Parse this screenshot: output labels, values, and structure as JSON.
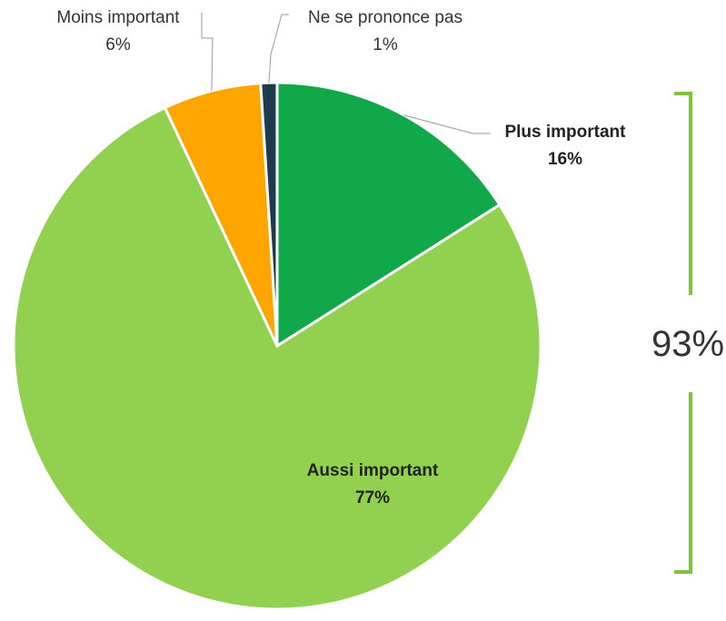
{
  "chart_data": {
    "type": "pie",
    "slices": [
      {
        "label": "Plus important",
        "value": 16,
        "value_label": "16%",
        "color": "#11A84A"
      },
      {
        "label": "Aussi important",
        "value": 77,
        "value_label": "77%",
        "color": "#92D050"
      },
      {
        "label": "Moins important",
        "value": 6,
        "value_label": "6%",
        "color": "#FFA500"
      },
      {
        "label": "Ne se prononce pas",
        "value": 1,
        "value_label": "1%",
        "color": "#1F3A4D"
      }
    ],
    "bracket": {
      "label": "93%",
      "color": "#7DC242"
    }
  }
}
